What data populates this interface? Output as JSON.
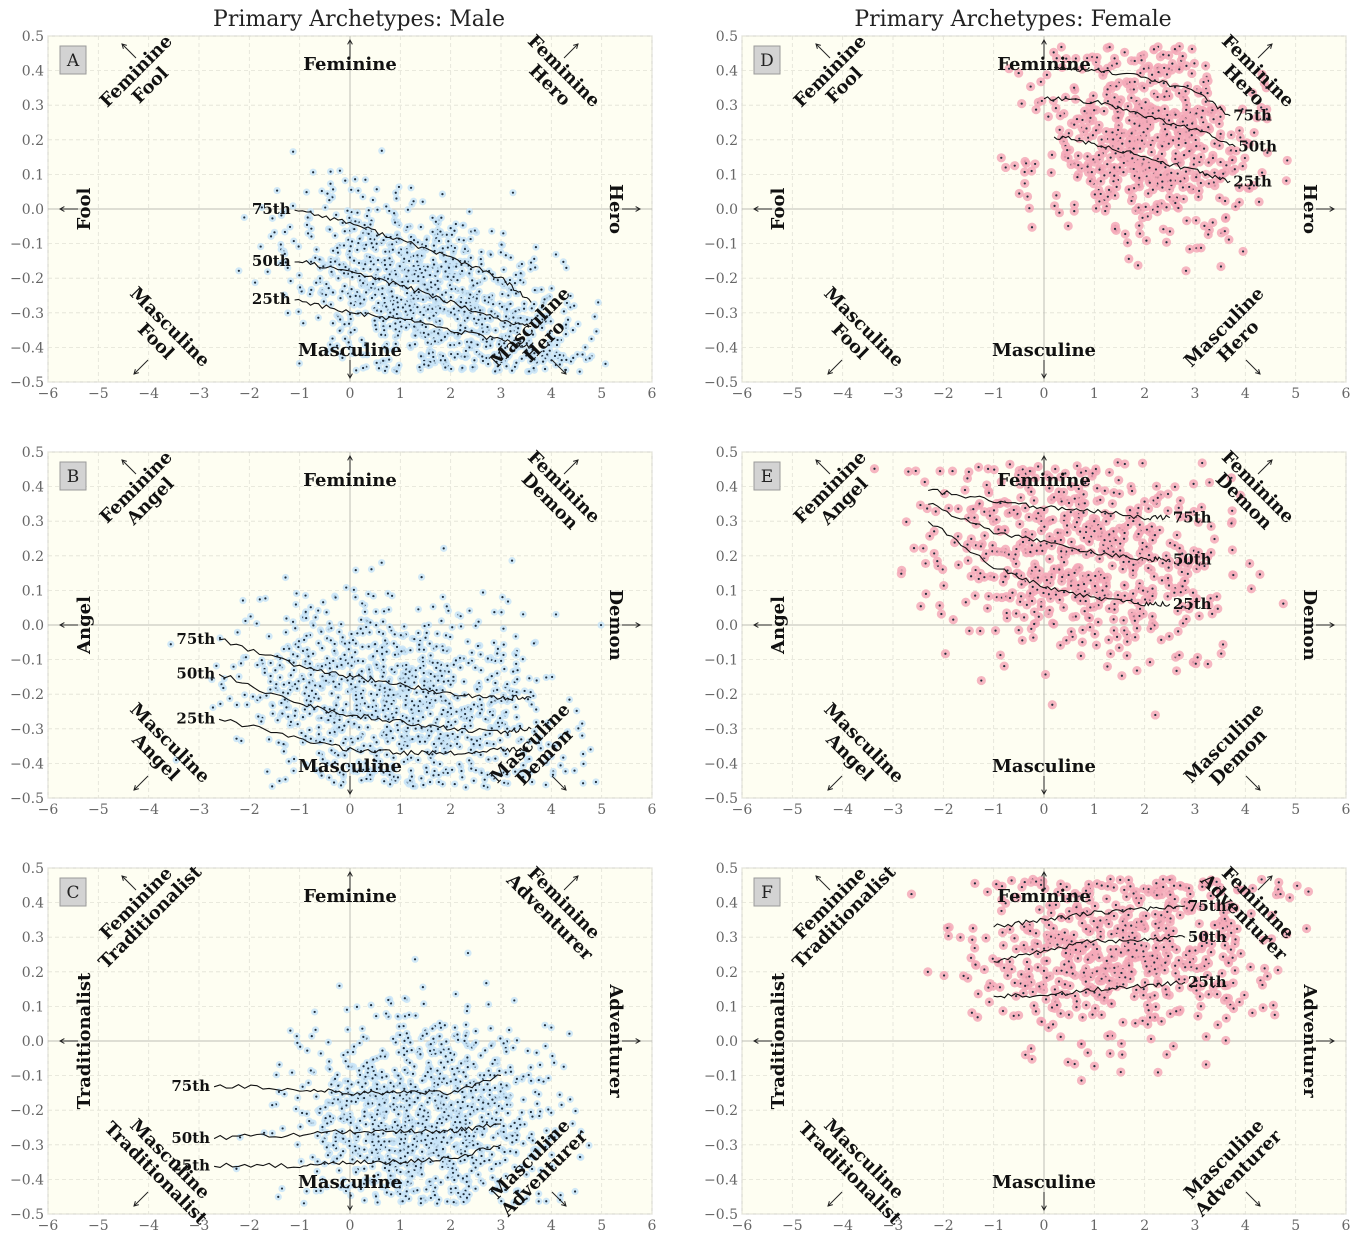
{
  "figure": {
    "column_titles": [
      "Primary Archetypes: Male",
      "Primary Archetypes: Female"
    ]
  },
  "colors": {
    "plot_background": "#fefef2",
    "male_marker_halo": "#c8e4f8",
    "female_marker_halo": "#f5a9b8",
    "marker_center": "#1b2a38",
    "line": "#111111",
    "panel_label_box": "#d3d3d3"
  },
  "chart_data": [
    {
      "panel": "A",
      "gender": "male",
      "type": "scatter",
      "xlim": [
        -6,
        6
      ],
      "ylim": [
        -0.5,
        0.5
      ],
      "xticks": [
        -6,
        -5,
        -4,
        -3,
        -2,
        -1,
        0,
        1,
        2,
        3,
        4,
        5,
        6
      ],
      "yticks": [
        -0.5,
        -0.4,
        -0.3,
        -0.2,
        -0.1,
        0.0,
        0.1,
        0.2,
        0.3,
        0.4,
        0.5
      ],
      "grid": true,
      "axis_labels": {
        "left": "Fool",
        "right": "Hero",
        "top": "Feminine",
        "bottom": "Masculine"
      },
      "corner_labels": {
        "top_left": "Feminine\nFool",
        "top_right": "Feminine\nHero",
        "bottom_left": "Masculine\nFool",
        "bottom_right": "Masculine\nHero"
      },
      "percentile_lines": [
        {
          "name": "75th",
          "points": [
            [
              -1.1,
              0.0
            ],
            [
              0,
              -0.04
            ],
            [
              1,
              -0.09
            ],
            [
              2,
              -0.14
            ],
            [
              3,
              -0.2
            ],
            [
              3.6,
              -0.27
            ]
          ]
        },
        {
          "name": "50th",
          "points": [
            [
              -1.1,
              -0.15
            ],
            [
              0,
              -0.18
            ],
            [
              1,
              -0.22
            ],
            [
              2,
              -0.27
            ],
            [
              3,
              -0.32
            ],
            [
              3.6,
              -0.34
            ]
          ]
        },
        {
          "name": "25th",
          "points": [
            [
              -1.1,
              -0.26
            ],
            [
              0,
              -0.3
            ],
            [
              1,
              -0.32
            ],
            [
              2,
              -0.35
            ],
            [
              3,
              -0.38
            ],
            [
              3.6,
              -0.4
            ]
          ]
        }
      ],
      "cloud": {
        "n": 1100,
        "x_range": [
          -3.2,
          5.2
        ],
        "center_slope": -0.045,
        "center_intercept": -0.17,
        "spread": 0.12,
        "seed": 11
      }
    },
    {
      "panel": "B",
      "gender": "male",
      "type": "scatter",
      "xlim": [
        -6,
        6
      ],
      "ylim": [
        -0.5,
        0.5
      ],
      "xticks": [
        -6,
        -5,
        -4,
        -3,
        -2,
        -1,
        0,
        1,
        2,
        3,
        4,
        5,
        6
      ],
      "yticks": [
        -0.5,
        -0.4,
        -0.3,
        -0.2,
        -0.1,
        0.0,
        0.1,
        0.2,
        0.3,
        0.4,
        0.5
      ],
      "grid": true,
      "axis_labels": {
        "left": "Angel",
        "right": "Demon",
        "top": "Feminine",
        "bottom": "Masculine"
      },
      "corner_labels": {
        "top_left": "Feminine\nAngel",
        "top_right": "Feminine\nDemon",
        "bottom_left": "Masculine\nAngel",
        "bottom_right": "Masculine\nDemon"
      },
      "percentile_lines": [
        {
          "name": "75th",
          "points": [
            [
              -2.6,
              -0.04
            ],
            [
              -1,
              -0.12
            ],
            [
              0,
              -0.15
            ],
            [
              1,
              -0.17
            ],
            [
              2,
              -0.2
            ],
            [
              3,
              -0.21
            ],
            [
              3.6,
              -0.21
            ]
          ]
        },
        {
          "name": "50th",
          "points": [
            [
              -2.6,
              -0.14
            ],
            [
              -1,
              -0.23
            ],
            [
              0,
              -0.26
            ],
            [
              1,
              -0.28
            ],
            [
              2,
              -0.3
            ],
            [
              3,
              -0.31
            ],
            [
              3.6,
              -0.3
            ]
          ]
        },
        {
          "name": "25th",
          "points": [
            [
              -2.6,
              -0.27
            ],
            [
              -1,
              -0.33
            ],
            [
              0,
              -0.36
            ],
            [
              1,
              -0.37
            ],
            [
              2,
              -0.37
            ],
            [
              3,
              -0.36
            ],
            [
              3.6,
              -0.36
            ]
          ]
        }
      ],
      "cloud": {
        "n": 1050,
        "x_range": [
          -4.5,
          5.2
        ],
        "center_slope": -0.018,
        "center_intercept": -0.2,
        "spread": 0.14,
        "seed": 23
      }
    },
    {
      "panel": "C",
      "gender": "male",
      "type": "scatter",
      "xlim": [
        -6,
        6
      ],
      "ylim": [
        -0.5,
        0.5
      ],
      "xticks": [
        -6,
        -5,
        -4,
        -3,
        -2,
        -1,
        0,
        1,
        2,
        3,
        4,
        5,
        6
      ],
      "yticks": [
        -0.5,
        -0.4,
        -0.3,
        -0.2,
        -0.1,
        0.0,
        0.1,
        0.2,
        0.3,
        0.4,
        0.5
      ],
      "grid": true,
      "axis_labels": {
        "left": "Traditionalist",
        "right": "Adventurer",
        "top": "Feminine",
        "bottom": "Masculine"
      },
      "corner_labels": {
        "top_left": "Feminine\nTraditionalist",
        "top_right": "Feminine\nAdventurer",
        "bottom_left": "Masculine\nTraditionalist",
        "bottom_right": "Masculine\nAdventurer"
      },
      "percentile_lines": [
        {
          "name": "75th",
          "points": [
            [
              -2.7,
              -0.13
            ],
            [
              -1,
              -0.14
            ],
            [
              0,
              -0.15
            ],
            [
              1,
              -0.15
            ],
            [
              2,
              -0.15
            ],
            [
              3,
              -0.1
            ]
          ]
        },
        {
          "name": "50th",
          "points": [
            [
              -2.7,
              -0.28
            ],
            [
              -1,
              -0.27
            ],
            [
              0,
              -0.26
            ],
            [
              1,
              -0.26
            ],
            [
              2,
              -0.26
            ],
            [
              3,
              -0.24
            ]
          ]
        },
        {
          "name": "25th",
          "points": [
            [
              -2.7,
              -0.36
            ],
            [
              -1,
              -0.36
            ],
            [
              0,
              -0.35
            ],
            [
              1,
              -0.35
            ],
            [
              2,
              -0.34
            ],
            [
              3,
              -0.3
            ]
          ]
        }
      ],
      "cloud": {
        "n": 1100,
        "x_range": [
          -3.0,
          4.8
        ],
        "center_slope": 0.0,
        "center_intercept": -0.22,
        "spread": 0.14,
        "seed": 37
      }
    },
    {
      "panel": "D",
      "gender": "female",
      "type": "scatter",
      "xlim": [
        -6,
        6
      ],
      "ylim": [
        -0.5,
        0.5
      ],
      "xticks": [
        -6,
        -5,
        -4,
        -3,
        -2,
        -1,
        0,
        1,
        2,
        3,
        4,
        5,
        6
      ],
      "yticks": [
        -0.5,
        -0.4,
        -0.3,
        -0.2,
        -0.1,
        0.0,
        0.1,
        0.2,
        0.3,
        0.4,
        0.5
      ],
      "grid": true,
      "axis_labels": {
        "left": "Fool",
        "right": "Hero",
        "top": "Feminine",
        "bottom": "Masculine"
      },
      "corner_labels": {
        "top_left": "Feminine\nFool",
        "top_right": "Feminine\nHero",
        "bottom_left": "Masculine\nFool",
        "bottom_right": "Masculine\nHero"
      },
      "percentile_lines": [
        {
          "name": "75th",
          "points": [
            [
              0.2,
              0.41
            ],
            [
              1,
              0.4
            ],
            [
              2,
              0.38
            ],
            [
              3,
              0.34
            ],
            [
              3.7,
              0.27
            ]
          ]
        },
        {
          "name": "50th",
          "points": [
            [
              0.0,
              0.32
            ],
            [
              1,
              0.31
            ],
            [
              2,
              0.27
            ],
            [
              3,
              0.23
            ],
            [
              3.8,
              0.18
            ]
          ]
        },
        {
          "name": "25th",
          "points": [
            [
              0.2,
              0.21
            ],
            [
              1,
              0.19
            ],
            [
              2,
              0.15
            ],
            [
              3,
              0.11
            ],
            [
              3.7,
              0.08
            ]
          ]
        }
      ],
      "cloud": {
        "n": 620,
        "x_range": [
          -1.8,
          4.9
        ],
        "center_slope": -0.03,
        "center_intercept": 0.26,
        "spread": 0.14,
        "seed": 51
      }
    },
    {
      "panel": "E",
      "gender": "female",
      "type": "scatter",
      "xlim": [
        -6,
        6
      ],
      "ylim": [
        -0.5,
        0.5
      ],
      "xticks": [
        -6,
        -5,
        -4,
        -3,
        -2,
        -1,
        0,
        1,
        2,
        3,
        4,
        5,
        6
      ],
      "yticks": [
        -0.5,
        -0.4,
        -0.3,
        -0.2,
        -0.1,
        0.0,
        0.1,
        0.2,
        0.3,
        0.4,
        0.5
      ],
      "grid": true,
      "axis_labels": {
        "left": "Angel",
        "right": "Demon",
        "top": "Feminine",
        "bottom": "Masculine"
      },
      "corner_labels": {
        "top_left": "Feminine\nAngel",
        "top_right": "Feminine\nDemon",
        "bottom_left": "Masculine\nAngel",
        "bottom_right": "Masculine\nDemon"
      },
      "percentile_lines": [
        {
          "name": "75th",
          "points": [
            [
              -2.3,
              0.39
            ],
            [
              -1,
              0.36
            ],
            [
              0,
              0.34
            ],
            [
              1,
              0.33
            ],
            [
              2,
              0.31
            ],
            [
              2.5,
              0.31
            ]
          ]
        },
        {
          "name": "50th",
          "points": [
            [
              -2.3,
              0.35
            ],
            [
              -1,
              0.27
            ],
            [
              0,
              0.24
            ],
            [
              1,
              0.21
            ],
            [
              2,
              0.19
            ],
            [
              2.5,
              0.19
            ]
          ]
        },
        {
          "name": "25th",
          "points": [
            [
              -2.3,
              0.3
            ],
            [
              -1,
              0.17
            ],
            [
              0,
              0.11
            ],
            [
              1,
              0.08
            ],
            [
              2,
              0.06
            ],
            [
              2.5,
              0.06
            ]
          ]
        }
      ],
      "cloud": {
        "n": 620,
        "x_range": [
          -4.6,
          4.8
        ],
        "center_slope": -0.02,
        "center_intercept": 0.21,
        "spread": 0.14,
        "seed": 67
      }
    },
    {
      "panel": "F",
      "gender": "female",
      "type": "scatter",
      "xlim": [
        -6,
        6
      ],
      "ylim": [
        -0.5,
        0.5
      ],
      "xticks": [
        -6,
        -5,
        -4,
        -3,
        -2,
        -1,
        0,
        1,
        2,
        3,
        4,
        5,
        6
      ],
      "yticks": [
        -0.5,
        -0.4,
        -0.3,
        -0.2,
        -0.1,
        0.0,
        0.1,
        0.2,
        0.3,
        0.4,
        0.5
      ],
      "grid": true,
      "axis_labels": {
        "left": "Traditionalist",
        "right": "Adventurer",
        "top": "Feminine",
        "bottom": "Masculine"
      },
      "corner_labels": {
        "top_left": "Feminine\nTraditionalist",
        "top_right": "Feminine\nAdventurer",
        "bottom_left": "Masculine\nTraditionalist",
        "bottom_right": "Masculine\nAdventurer"
      },
      "percentile_lines": [
        {
          "name": "75th",
          "points": [
            [
              -1.0,
              0.33
            ],
            [
              0,
              0.35
            ],
            [
              1,
              0.37
            ],
            [
              2,
              0.38
            ],
            [
              2.8,
              0.39
            ]
          ]
        },
        {
          "name": "50th",
          "points": [
            [
              -1.0,
              0.23
            ],
            [
              0,
              0.26
            ],
            [
              1,
              0.29
            ],
            [
              2,
              0.29
            ],
            [
              2.8,
              0.3
            ]
          ]
        },
        {
          "name": "25th",
          "points": [
            [
              -1.0,
              0.13
            ],
            [
              0,
              0.13
            ],
            [
              1,
              0.15
            ],
            [
              2,
              0.16
            ],
            [
              2.8,
              0.17
            ]
          ]
        }
      ],
      "cloud": {
        "n": 620,
        "x_range": [
          -3.8,
          5.6
        ],
        "center_slope": 0.01,
        "center_intercept": 0.24,
        "spread": 0.13,
        "seed": 83
      }
    }
  ]
}
